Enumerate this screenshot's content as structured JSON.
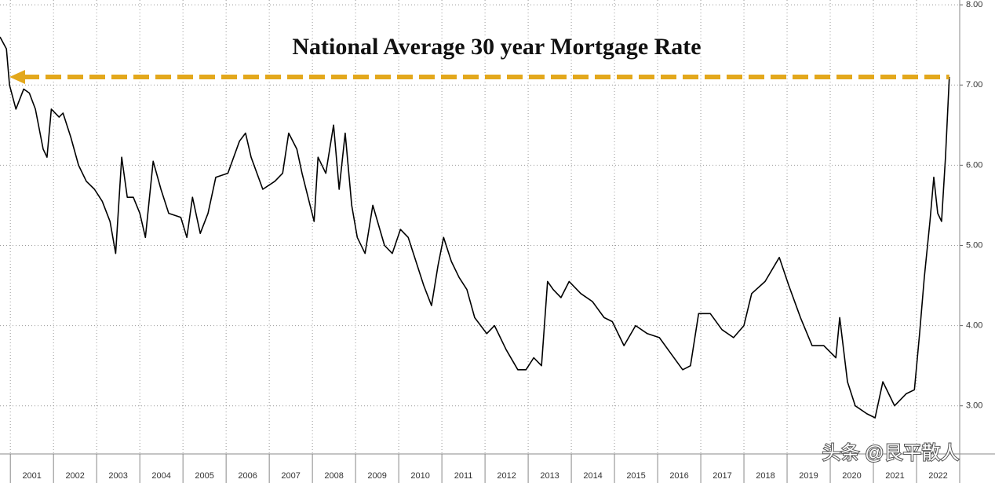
{
  "chart_data": {
    "type": "line",
    "title": "National Average 30 year Mortgage Rate",
    "watermark": "头条 @艮平散人",
    "color": "#000000",
    "reference_line": 7.1,
    "reference_color": "#e3a81c",
    "x": [
      2000.76,
      2000.91,
      2000.98,
      2001.13,
      2001.31,
      2001.44,
      2001.58,
      2001.76,
      2001.85,
      2001.95,
      2002.13,
      2002.22,
      2002.4,
      2002.58,
      2002.76,
      2002.95,
      2003.13,
      2003.31,
      2003.44,
      2003.58,
      2003.71,
      2003.85,
      2004.0,
      2004.13,
      2004.31,
      2004.49,
      2004.67,
      2004.95,
      2005.09,
      2005.22,
      2005.4,
      2005.58,
      2005.76,
      2006.04,
      2006.31,
      2006.45,
      2006.58,
      2006.85,
      2007.13,
      2007.31,
      2007.45,
      2007.64,
      2007.76,
      2008.04,
      2008.13,
      2008.31,
      2008.49,
      2008.62,
      2008.76,
      2008.91,
      2009.04,
      2009.22,
      2009.4,
      2009.67,
      2009.85,
      2010.04,
      2010.22,
      2010.4,
      2010.58,
      2010.76,
      2010.91,
      2011.04,
      2011.22,
      2011.4,
      2011.58,
      2011.76,
      2012.04,
      2012.22,
      2012.49,
      2012.76,
      2012.95,
      2013.13,
      2013.31,
      2013.45,
      2013.58,
      2013.76,
      2013.95,
      2014.22,
      2014.49,
      2014.76,
      2014.95,
      2015.22,
      2015.49,
      2015.76,
      2016.04,
      2016.31,
      2016.58,
      2016.76,
      2016.95,
      2017.22,
      2017.49,
      2017.76,
      2018.0,
      2018.18,
      2018.49,
      2018.82,
      2019.04,
      2019.31,
      2019.58,
      2019.85,
      2020.13,
      2020.22,
      2020.4,
      2020.58,
      2020.85,
      2021.04,
      2021.22,
      2021.49,
      2021.76,
      2021.95,
      2022.07,
      2022.18,
      2022.31,
      2022.4,
      2022.49,
      2022.58,
      2022.67,
      2022.76
    ],
    "values": [
      7.6,
      7.45,
      7.0,
      6.7,
      6.95,
      6.9,
      6.7,
      6.2,
      6.1,
      6.7,
      6.6,
      6.65,
      6.35,
      6.0,
      5.8,
      5.7,
      5.55,
      5.3,
      4.9,
      6.1,
      5.6,
      5.6,
      5.4,
      5.1,
      6.05,
      5.7,
      5.4,
      5.35,
      5.1,
      5.6,
      5.15,
      5.4,
      5.85,
      5.9,
      6.3,
      6.4,
      6.1,
      5.7,
      5.8,
      5.9,
      6.4,
      6.2,
      5.9,
      5.3,
      6.1,
      5.9,
      6.5,
      5.7,
      6.4,
      5.5,
      5.1,
      4.9,
      5.5,
      5.0,
      4.9,
      5.2,
      5.1,
      4.8,
      4.5,
      4.25,
      4.75,
      5.1,
      4.8,
      4.6,
      4.45,
      4.1,
      3.9,
      4.0,
      3.7,
      3.45,
      3.45,
      3.6,
      3.5,
      4.55,
      4.45,
      4.35,
      4.55,
      4.4,
      4.3,
      4.1,
      4.05,
      3.75,
      4.0,
      3.9,
      3.85,
      3.65,
      3.45,
      3.5,
      4.15,
      4.15,
      3.95,
      3.85,
      4.0,
      4.4,
      4.55,
      4.85,
      4.5,
      4.1,
      3.75,
      3.75,
      3.6,
      4.1,
      3.3,
      3.0,
      2.9,
      2.85,
      3.3,
      3.0,
      3.15,
      3.2,
      3.9,
      4.6,
      5.3,
      5.85,
      5.4,
      5.3,
      6.1,
      7.1
    ],
    "xlim": [
      2000.76,
      2023.0
    ],
    "ylim": [
      2.4,
      8.06
    ],
    "xticks": [
      2001,
      2002,
      2003,
      2004,
      2005,
      2006,
      2007,
      2008,
      2009,
      2010,
      2011,
      2012,
      2013,
      2014,
      2015,
      2016,
      2017,
      2018,
      2019,
      2020,
      2021,
      2022
    ],
    "yticks": [
      {
        "value": 3,
        "label": "3.00"
      },
      {
        "value": 4,
        "label": "4.00"
      },
      {
        "value": 5,
        "label": "5.00"
      },
      {
        "value": 6,
        "label": "6.00"
      },
      {
        "value": 7,
        "label": "7.00"
      },
      {
        "value": 8,
        "label": "8.00"
      }
    ],
    "grid": true
  }
}
